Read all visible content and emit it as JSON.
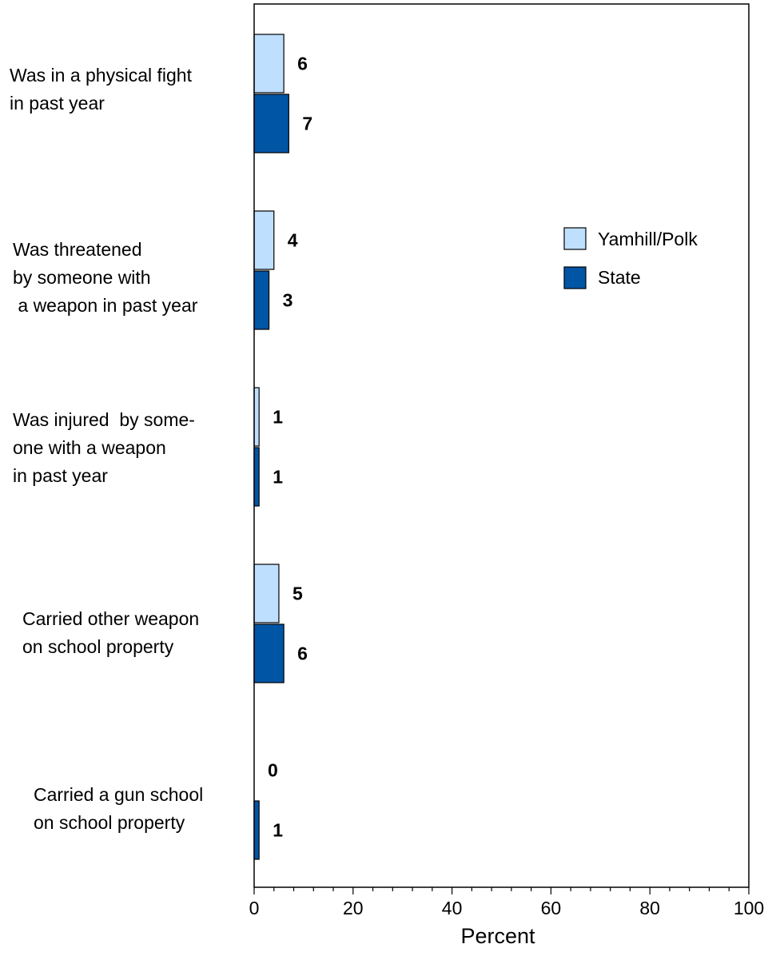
{
  "chart_data": {
    "type": "bar",
    "orientation": "horizontal",
    "categories": [
      [
        "Was in a physical fight",
        "in past year"
      ],
      [
        "Was threatened",
        "by someone with",
        " a weapon in past year"
      ],
      [
        "Was injured  by some-",
        "one with a weapon",
        "in past year"
      ],
      [
        "Carried other weapon",
        "on school property"
      ],
      [
        "Carried a gun school",
        "on school property"
      ]
    ],
    "series": [
      {
        "name": "Yamhill/Polk",
        "color": "#bfdfff",
        "values": [
          6,
          4,
          1,
          5,
          0
        ],
        "labels": [
          "6",
          "4",
          "1",
          "5",
          "0"
        ]
      },
      {
        "name": "State",
        "color": "#0055a5",
        "values": [
          7,
          3,
          1,
          6,
          1
        ],
        "labels": [
          "7",
          "3",
          "1",
          "6",
          "1"
        ]
      }
    ],
    "xlabel": "Percent",
    "xlim": [
      0,
      100
    ],
    "xticks": [
      "0",
      "20",
      "40",
      "60",
      "80",
      "100"
    ],
    "legend_position": "right",
    "grid": false
  }
}
